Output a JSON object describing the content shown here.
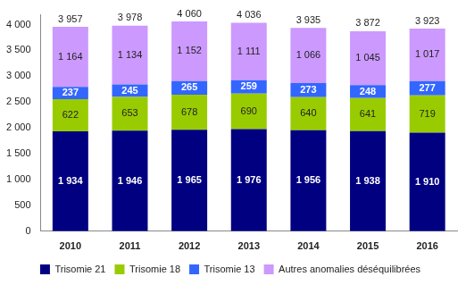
{
  "chart_data": {
    "type": "bar",
    "stacked": true,
    "data_labels": true,
    "grid": false,
    "legend": "bottom",
    "categories": [
      "2010",
      "2011",
      "2012",
      "2013",
      "2014",
      "2015",
      "2016"
    ],
    "series": [
      {
        "name": "Trisomie 21",
        "color": "#000080",
        "values": [
          1934,
          1946,
          1965,
          1976,
          1956,
          1938,
          1910
        ],
        "value_labels": [
          "1 934",
          "1 946",
          "1 965",
          "1 976",
          "1 956",
          "1 938",
          "1 910"
        ]
      },
      {
        "name": "Trisomie 18",
        "color": "#99cc00",
        "values": [
          622,
          653,
          678,
          690,
          640,
          641,
          719
        ]
      },
      {
        "name": "Trisomie 13",
        "color": "#3366ff",
        "values": [
          237,
          245,
          265,
          259,
          273,
          248,
          277
        ]
      },
      {
        "name": "Autres anomalies déséquilibrées",
        "color": "#cc99ff",
        "values": [
          1164,
          1134,
          1152,
          1111,
          1066,
          1045,
          1017
        ],
        "value_labels": [
          "1 164",
          "1 134",
          "1 152",
          "1 111",
          "1 066",
          "1 045",
          "1 017"
        ]
      }
    ],
    "totals": [
      3957,
      3978,
      4060,
      4036,
      3935,
      3872,
      3923
    ],
    "total_labels": [
      "3 957",
      "3 978",
      "4 060",
      "4 036",
      "3 935",
      "3 872",
      "3 923"
    ],
    "ylim": [
      0,
      4200
    ],
    "yticks": [
      0,
      500,
      {
        "value": 1000,
        "label": "1 000"
      },
      {
        "value": 1500,
        "label": "1 500"
      },
      {
        "value": 2000,
        "label": "2 000"
      },
      {
        "value": 2500,
        "label": "2 500"
      },
      {
        "value": 3000,
        "label": "3 000"
      },
      {
        "value": 3500,
        "label": "3 500"
      },
      {
        "value": 4000,
        "label": "4 000"
      }
    ]
  }
}
